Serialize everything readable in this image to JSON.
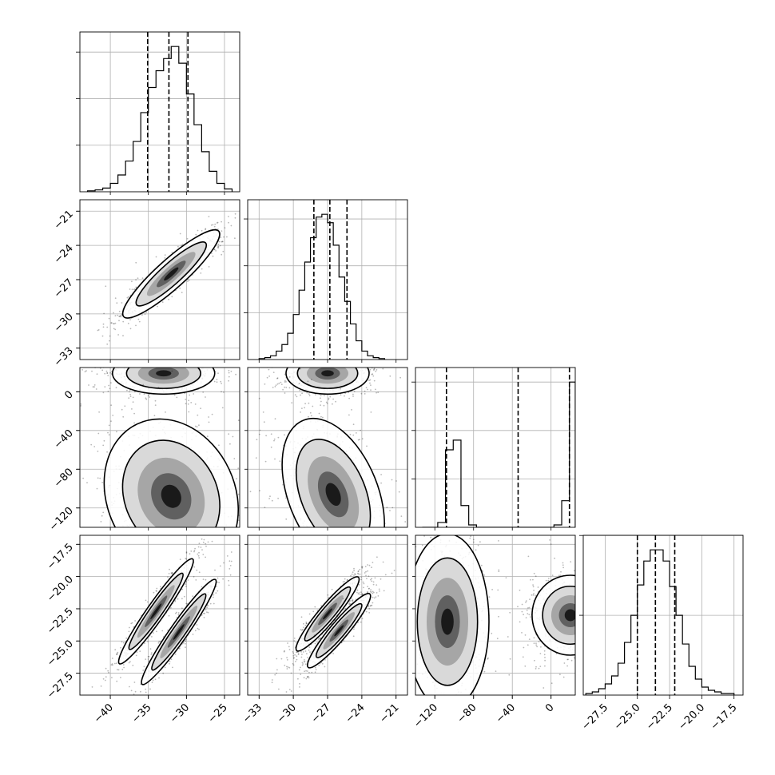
{
  "chart_data": {
    "type": "corner",
    "grid": true,
    "params": [
      {
        "index": 0,
        "range": [
          -44,
          -23
        ],
        "ticks": [
          -40,
          -35,
          -30,
          -25
        ],
        "tick_labels": [
          "−40",
          "−35",
          "−30",
          "−25"
        ],
        "quantiles": [
          -35.1,
          -32.3,
          -29.8
        ],
        "hist_bin_edges": [
          -43,
          -42,
          -41,
          -40,
          -39,
          -38,
          -37,
          -36,
          -35,
          -34,
          -33,
          -32,
          -31,
          -30,
          -29,
          -28,
          -27,
          -26,
          -25,
          -24
        ],
        "hist_counts": [
          1,
          2,
          4,
          9,
          18,
          33,
          54,
          85,
          112,
          130,
          143,
          156,
          138,
          105,
          72,
          43,
          22,
          9,
          3
        ]
      },
      {
        "index": 1,
        "range": [
          -34,
          -20
        ],
        "ticks": [
          -33,
          -30,
          -27,
          -24,
          -21
        ],
        "tick_labels": [
          "−33",
          "−30",
          "−27",
          "−24",
          "−21"
        ],
        "quantiles": [
          -28.2,
          -26.8,
          -25.3
        ],
        "hist_bin_edges": [
          -33,
          -32.5,
          -32,
          -31.5,
          -31,
          -30.5,
          -30,
          -29.5,
          -29,
          -28.5,
          -28,
          -27.5,
          -27,
          -26.5,
          -26,
          -25.5,
          -25,
          -24.5,
          -24,
          -23.5,
          -23,
          -22.5,
          -22
        ],
        "hist_counts": [
          1,
          2,
          4,
          9,
          16,
          28,
          48,
          74,
          104,
          130,
          152,
          155,
          146,
          122,
          88,
          62,
          38,
          20,
          9,
          4,
          2,
          1
        ]
      },
      {
        "index": 2,
        "range": [
          -140,
          25
        ],
        "ticks": [
          -120,
          -80,
          -40,
          0
        ],
        "tick_labels": [
          "−120",
          "−80",
          "−40",
          "0"
        ],
        "quantiles": [
          -108,
          -34,
          19
        ],
        "hist_bin_edges": [
          -133,
          -125,
          -117,
          -109,
          -101,
          -93,
          -85,
          -77,
          -69,
          -61,
          -53,
          -45,
          -37,
          -29,
          -21,
          -13,
          -5,
          3,
          11,
          19,
          25
        ],
        "hist_counts": [
          0,
          0,
          2,
          32,
          36,
          9,
          1,
          0,
          0,
          0,
          0,
          0,
          0,
          0,
          0,
          0,
          0,
          1,
          11,
          60
        ]
      },
      {
        "index": 3,
        "range": [
          -29.2,
          -16.8
        ],
        "ticks": [
          -27.5,
          -25.0,
          -22.5,
          -20.0,
          -17.5
        ],
        "tick_labels": [
          "−27.5",
          "−25.0",
          "−22.5",
          "−20.0",
          "−17.5"
        ],
        "quantiles": [
          -25.0,
          -23.6,
          -22.1
        ],
        "hist_bin_edges": [
          -29,
          -28.5,
          -28,
          -27.5,
          -27,
          -26.5,
          -26,
          -25.5,
          -25,
          -24.5,
          -24,
          -23.5,
          -23,
          -22.5,
          -22,
          -21.5,
          -21,
          -20.5,
          -20,
          -19.5,
          -19,
          -18.5,
          -18,
          -17.5
        ],
        "hist_counts": [
          1,
          2,
          4,
          7,
          12,
          20,
          33,
          50,
          69,
          84,
          91,
          91,
          84,
          68,
          50,
          32,
          18,
          10,
          5,
          3,
          2,
          1,
          1
        ]
      }
    ],
    "density_2d": [
      {
        "x_param": 0,
        "y_param": 1,
        "modes": [
          {
            "center": [
              -32,
              -26.5
            ],
            "sd_major": 4.0,
            "sd_minor": 0.9,
            "angle_deg": 42
          }
        ]
      },
      {
        "x_param": 0,
        "y_param": 2,
        "modes": [
          {
            "center": [
              -33,
              19
            ],
            "sd_major": 3.2,
            "sd_minor": 1.3,
            "angle_deg": 0
          },
          {
            "center": [
              -32,
              -108
            ],
            "sd_major": 4.0,
            "sd_minor": 5.0,
            "angle_deg": 25
          }
        ]
      },
      {
        "x_param": 0,
        "y_param": 3,
        "modes": [
          {
            "center": [
              -34,
              -22.7
            ],
            "sd_major": 4.0,
            "sd_minor": 0.55,
            "angle_deg": 55
          },
          {
            "center": [
              -31,
              -24.3
            ],
            "sd_major": 4.0,
            "sd_minor": 0.55,
            "angle_deg": 55
          }
        ]
      },
      {
        "x_param": 1,
        "y_param": 2,
        "modes": [
          {
            "center": [
              -27,
              19
            ],
            "sd_major": 2.6,
            "sd_minor": 1.3,
            "angle_deg": 0
          },
          {
            "center": [
              -26.5,
              -106
            ],
            "sd_major": 2.8,
            "sd_minor": 5.0,
            "angle_deg": 22
          }
        ]
      },
      {
        "x_param": 1,
        "y_param": 3,
        "modes": [
          {
            "center": [
              -27,
              -22.9
            ],
            "sd_major": 3.0,
            "sd_minor": 0.55,
            "angle_deg": 50
          },
          {
            "center": [
              -26,
              -24.2
            ],
            "sd_major": 3.0,
            "sd_minor": 0.55,
            "angle_deg": 50
          }
        ]
      },
      {
        "x_param": 2,
        "y_param": 3,
        "modes": [
          {
            "center": [
              -107,
              -23.5
            ],
            "sd_major": 2.6,
            "sd_minor": 5.5,
            "angle_deg": 0
          },
          {
            "center": [
              20,
              -23
            ],
            "sd_major": 2.4,
            "sd_minor": 2.5,
            "angle_deg": 0
          }
        ]
      }
    ]
  }
}
